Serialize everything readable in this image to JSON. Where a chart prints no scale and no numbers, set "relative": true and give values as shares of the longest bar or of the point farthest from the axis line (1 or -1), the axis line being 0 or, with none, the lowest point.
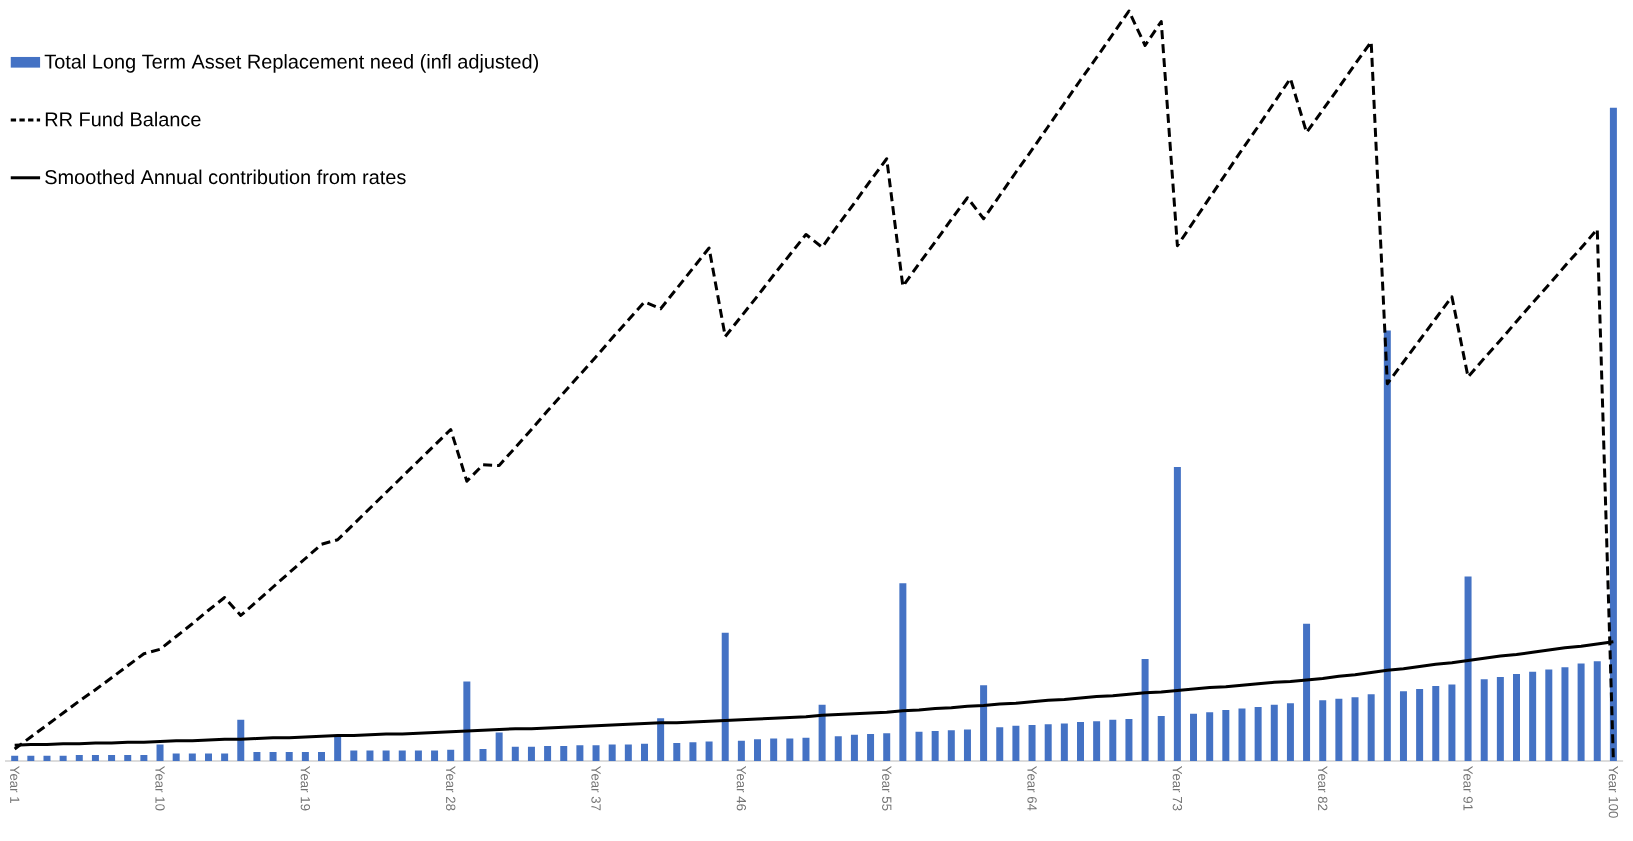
{
  "chart_data": {
    "type": "bar",
    "relative": true,
    "legend": "top left",
    "categories": [
      "Year 1",
      null,
      null,
      null,
      null,
      null,
      null,
      null,
      null,
      "Year 10",
      null,
      null,
      null,
      null,
      null,
      null,
      null,
      null,
      "Year 19",
      null,
      null,
      null,
      null,
      null,
      null,
      null,
      null,
      "Year 28",
      null,
      null,
      null,
      null,
      null,
      null,
      null,
      null,
      "Year 37",
      null,
      null,
      null,
      null,
      null,
      null,
      null,
      null,
      "Year 46",
      null,
      null,
      null,
      null,
      null,
      null,
      null,
      null,
      "Year 55",
      null,
      null,
      null,
      null,
      null,
      null,
      null,
      null,
      "Year 64",
      null,
      null,
      null,
      null,
      null,
      null,
      null,
      null,
      "Year 73",
      null,
      null,
      null,
      null,
      null,
      null,
      null,
      null,
      "Year 82",
      null,
      null,
      null,
      null,
      null,
      null,
      null,
      null,
      "Year 91",
      null,
      null,
      null,
      null,
      null,
      null,
      null,
      null,
      "Year 100"
    ],
    "series": [
      {
        "name": "Total Long Term Asset Replacement need (infl adjusted)",
        "color": "#4472c4",
        "values": [
          0.007,
          0.007,
          0.007,
          0.007,
          0.008,
          0.008,
          0.008,
          0.008,
          0.008,
          0.022,
          0.01,
          0.01,
          0.01,
          0.01,
          0.055,
          0.012,
          0.012,
          0.012,
          0.012,
          0.012,
          0.032,
          0.014,
          0.014,
          0.014,
          0.014,
          0.014,
          0.014,
          0.015,
          0.106,
          0.016,
          0.038,
          0.019,
          0.019,
          0.02,
          0.02,
          0.021,
          0.021,
          0.022,
          0.022,
          0.023,
          0.057,
          0.024,
          0.025,
          0.026,
          0.171,
          0.027,
          0.029,
          0.03,
          0.03,
          0.031,
          0.075,
          0.033,
          0.035,
          0.036,
          0.037,
          0.237,
          0.039,
          0.04,
          0.041,
          0.042,
          0.101,
          0.045,
          0.047,
          0.048,
          0.049,
          0.05,
          0.052,
          0.053,
          0.055,
          0.056,
          0.136,
          0.06,
          0.392,
          0.063,
          0.065,
          0.068,
          0.07,
          0.072,
          0.075,
          0.077,
          0.183,
          0.081,
          0.083,
          0.085,
          0.089,
          0.574,
          0.093,
          0.096,
          0.1,
          0.102,
          0.246,
          0.109,
          0.112,
          0.116,
          0.119,
          0.122,
          0.125,
          0.13,
          0.133,
          0.871
        ]
      },
      {
        "name": "RR Fund Balance",
        "type": "line",
        "line_style": "dashed",
        "color": "#000000",
        "values": [
          0.016,
          0.032,
          0.048,
          0.064,
          0.08,
          0.095,
          0.111,
          0.127,
          0.143,
          0.149,
          0.166,
          0.183,
          0.201,
          0.218,
          0.194,
          0.213,
          0.232,
          0.251,
          0.27,
          0.289,
          0.295,
          0.316,
          0.337,
          0.358,
          0.379,
          0.4,
          0.421,
          0.442,
          0.373,
          0.395,
          0.394,
          0.418,
          0.442,
          0.467,
          0.491,
          0.515,
          0.539,
          0.564,
          0.588,
          0.612,
          0.603,
          0.63,
          0.657,
          0.684,
          0.566,
          0.593,
          0.62,
          0.648,
          0.675,
          0.702,
          0.685,
          0.715,
          0.744,
          0.774,
          0.803,
          0.633,
          0.663,
          0.692,
          0.722,
          0.751,
          0.723,
          0.754,
          0.785,
          0.815,
          0.846,
          0.877,
          0.908,
          0.938,
          0.969,
          1.0,
          0.954,
          0.986,
          0.687,
          0.719,
          0.751,
          0.783,
          0.815,
          0.846,
          0.878,
          0.91,
          0.838,
          0.868,
          0.898,
          0.929,
          0.959,
          0.503,
          0.532,
          0.561,
          0.59,
          0.619,
          0.512,
          0.537,
          0.561,
          0.586,
          0.611,
          0.635,
          0.66,
          0.684,
          0.709,
          0.0
        ]
      },
      {
        "name": "Smoothed Annual contribution from rates",
        "type": "line",
        "line_style": "solid",
        "color": "#000000",
        "values": [
          0.021,
          0.022,
          0.022,
          0.023,
          0.023,
          0.024,
          0.024,
          0.025,
          0.025,
          0.026,
          0.027,
          0.027,
          0.028,
          0.029,
          0.029,
          0.03,
          0.031,
          0.031,
          0.032,
          0.033,
          0.034,
          0.034,
          0.035,
          0.036,
          0.036,
          0.037,
          0.038,
          0.039,
          0.04,
          0.041,
          0.042,
          0.043,
          0.043,
          0.044,
          0.045,
          0.046,
          0.047,
          0.048,
          0.049,
          0.05,
          0.051,
          0.051,
          0.052,
          0.053,
          0.054,
          0.055,
          0.056,
          0.057,
          0.058,
          0.059,
          0.061,
          0.062,
          0.063,
          0.064,
          0.065,
          0.067,
          0.068,
          0.07,
          0.071,
          0.073,
          0.074,
          0.076,
          0.077,
          0.079,
          0.081,
          0.082,
          0.084,
          0.086,
          0.087,
          0.089,
          0.091,
          0.092,
          0.094,
          0.096,
          0.098,
          0.099,
          0.101,
          0.103,
          0.105,
          0.106,
          0.108,
          0.11,
          0.113,
          0.115,
          0.118,
          0.121,
          0.123,
          0.126,
          0.129,
          0.131,
          0.134,
          0.137,
          0.14,
          0.142,
          0.145,
          0.148,
          0.151,
          0.153,
          0.156,
          0.159
        ]
      }
    ]
  }
}
